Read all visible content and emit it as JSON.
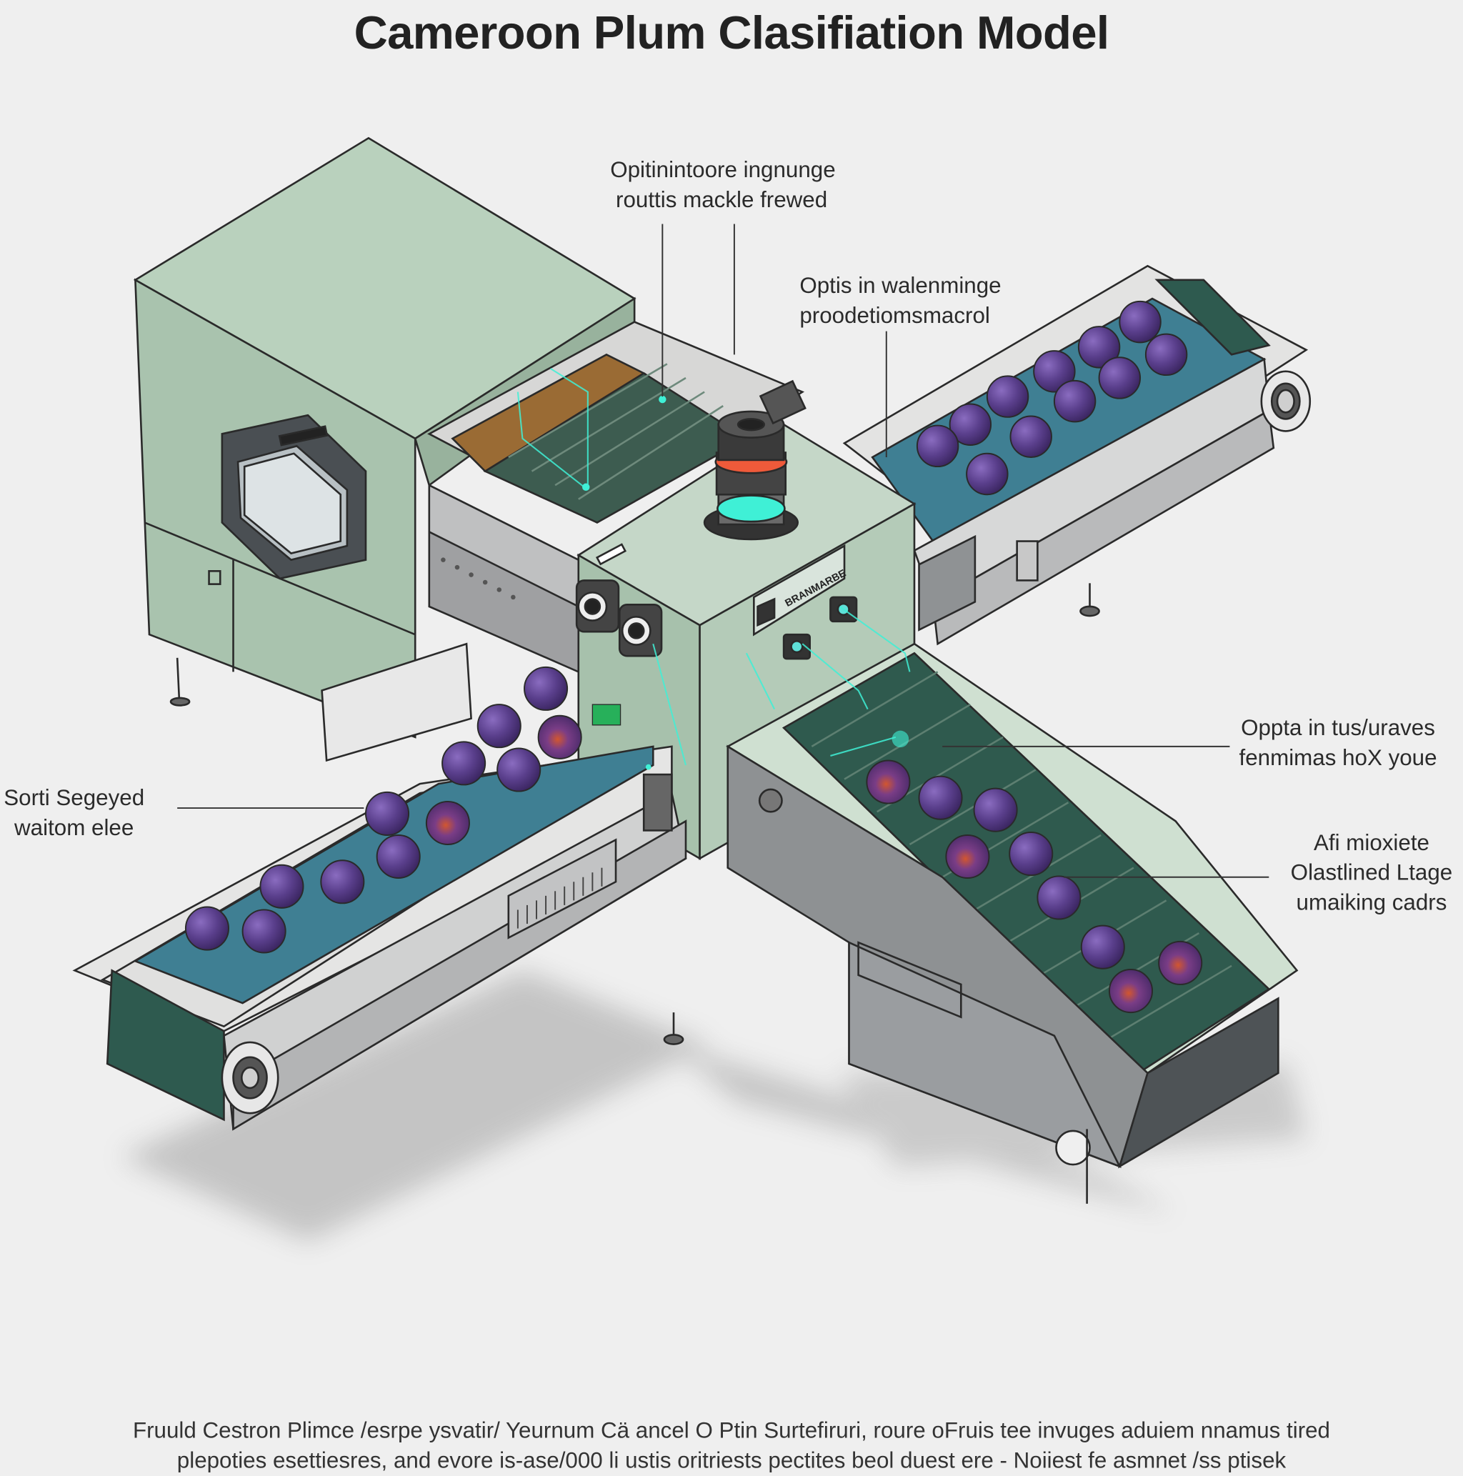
{
  "title": "Cameroon Plum Clasifiation Model",
  "callouts": {
    "top_center": [
      "Opitinintoore ingnunge",
      "routtis mackle frewed"
    ],
    "top_right": [
      "Optis in walenminge",
      "proodetiomsmacrol"
    ],
    "right_middle": [
      "Oppta in tus/uraves",
      "fenmimas hoX youe"
    ],
    "right_lower": [
      "Afi mioxiete",
      "Olastlined Ltage",
      "umaiking cadrs"
    ],
    "left": [
      "Sorti Segeyed",
      "waitom elee"
    ]
  },
  "machine_panel_text": "BRANMARBE",
  "caption": [
    "Fruuld Cestron Plimce /esrpe ysvatir/ Yeurnum Cä ancel O Ptin Surtefiruri, roure oFruis tee invuges aduiem nnamus tired",
    "plepoties esettiesres, and evore is-ase/000 li ustis oritriests pectites beol duest ere - Noiiest fe asmnet /ss ptisek"
  ],
  "colors": {
    "machine_green": "#a9c3ae",
    "machine_dark": "#7f9a86",
    "metal": "#c9cacb",
    "belt_blue": "#3f7f93",
    "belt_dark": "#2e5a4f",
    "plum": "#5a3f8c",
    "scan_cyan": "#3ff0d6"
  },
  "icons": [
    "camera-unit-icon",
    "scanner-beam-icon",
    "control-screen-icon"
  ]
}
